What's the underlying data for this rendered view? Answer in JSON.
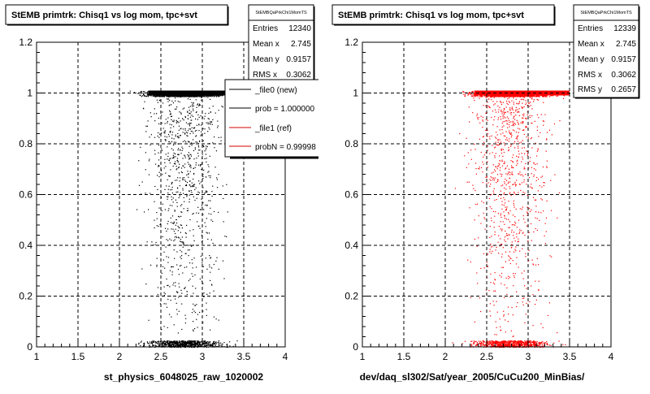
{
  "colors": {
    "frame": "#000000",
    "background": "#ffffff",
    "points_left": "#000000",
    "points_right": "#ff0000",
    "legend_new": "#000000",
    "legend_ref": "#d40000"
  },
  "panels": [
    {
      "title": "StEMB primtrk: Chisq1 vs log mom, tpc+svt",
      "stats": {
        "name": "StEMBQaPrkChi1MomTS",
        "rows": [
          {
            "label": "Entries",
            "value": "12340"
          },
          {
            "label": "Mean x",
            "value": "2.745"
          },
          {
            "label": "Mean y",
            "value": "0.9157"
          },
          {
            "label": "RMS x",
            "value": "0.3062"
          }
        ]
      },
      "legend": {
        "entries": [
          {
            "label": "_file0 (new)"
          },
          {
            "label": "prob = 1.000000"
          },
          {
            "label": "_file1 (ref)"
          },
          {
            "label": "probN = 0.99998"
          }
        ]
      },
      "xlabel": "st_physics_6048025_raw_1020002"
    },
    {
      "title": "StEMB primtrk: Chisq1 vs log mom, tpc+svt",
      "stats": {
        "name": "StEMBQaPrkChi1MomTS",
        "rows": [
          {
            "label": "Entries",
            "value": "12339"
          },
          {
            "label": "Mean x",
            "value": "2.745"
          },
          {
            "label": "Mean y",
            "value": "0.9157"
          },
          {
            "label": "RMS x",
            "value": "0.3062"
          },
          {
            "label": "RMS y",
            "value": "0.2657"
          }
        ]
      },
      "xlabel": "dev/daq_sl302/Sat/year_2005/CuCu200_MinBias/"
    }
  ],
  "chart_data": [
    {
      "type": "scatter",
      "title": "StEMB primtrk: Chisq1 vs log mom, tpc+svt",
      "xlabel": "st_physics_6048025_raw_1020002",
      "ylabel": "",
      "xlim": [
        1,
        4
      ],
      "ylim": [
        0,
        1.2
      ],
      "xticks": [
        "1",
        "1.5",
        "2",
        "2.5",
        "3",
        "3.5",
        "4"
      ],
      "yticks": [
        "0",
        "0.2",
        "0.4",
        "0.6",
        "0.8",
        "1",
        "1.2"
      ],
      "grid": true,
      "point_color": "#000000",
      "series": [
        {
          "name": "_file0 (new)",
          "x_range": [
            2.02,
            3.55
          ],
          "y_band_top": 1.0,
          "y_band_bottom": 0.0,
          "entries": 12340
        }
      ]
    },
    {
      "type": "scatter",
      "title": "StEMB primtrk: Chisq1 vs log mom, tpc+svt",
      "xlabel": "dev/daq_sl302/Sat/year_2005/CuCu200_MinBias/",
      "ylabel": "",
      "xlim": [
        1,
        4
      ],
      "ylim": [
        0,
        1.2
      ],
      "xticks": [
        "1",
        "1.5",
        "2",
        "2.5",
        "3",
        "3.5",
        "4"
      ],
      "yticks": [
        "0",
        "0.2",
        "0.4",
        "0.6",
        "0.8",
        "1",
        "1.2"
      ],
      "grid": true,
      "point_color": "#ff0000",
      "series": [
        {
          "name": "_file1 (ref)",
          "x_range": [
            2.02,
            3.55
          ],
          "y_band_top": 1.0,
          "y_band_bottom": 0.0,
          "entries": 12339
        }
      ]
    }
  ]
}
